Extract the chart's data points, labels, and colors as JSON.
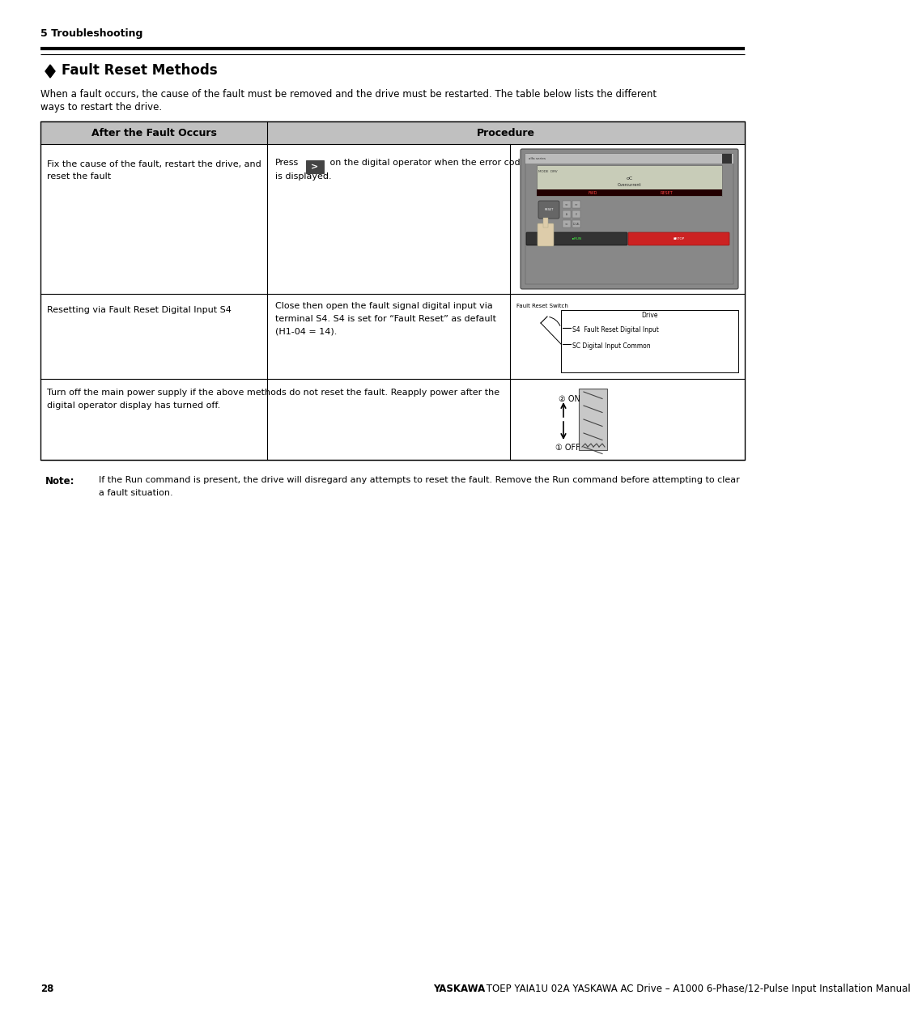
{
  "page_num": "28",
  "footer_bold": "YASKAWA",
  "footer_regular": " TOEP YAIA1U 02A YASKAWA AC Drive – A1000 6-Phase/12-Pulse Input Installation Manual",
  "section_header": "5 Troubleshooting",
  "section_title": "Fault Reset Methods",
  "intro_line1": "When a fault occurs, the cause of the fault must be removed and the drive must be restarted. The table below lists the different",
  "intro_line2": "ways to restart the drive.",
  "table_col1_header": "After the Fault Occurs",
  "table_col2_header": "Procedure",
  "table_header_bg": "#c0c0c0",
  "table_border_color": "#000000",
  "bg_color": "#ffffff",
  "row1_col1_line1": "Fix the cause of the fault, restart the drive, and",
  "row1_col1_line2": "reset the fault",
  "row2_col1": "Resetting via Fault Reset Digital Input S4",
  "row2_col2_line1": "Close then open the fault signal digital input via",
  "row2_col2_line2": "terminal S4. S4 is set for “Fault Reset” as default",
  "row2_col2_line3": "(H1-04 = 14).",
  "row3_col1_line1": "Turn off the main power supply if the above methods do not reset the fault. Reapply power after the",
  "row3_col1_line2": "digital operator display has turned off.",
  "note_label": "Note:",
  "note_text_line1": "If the Run command is present, the drive will disregard any attempts to reset the fault. Remove the Run command before attempting to clear",
  "note_text_line2": "a fault situation."
}
